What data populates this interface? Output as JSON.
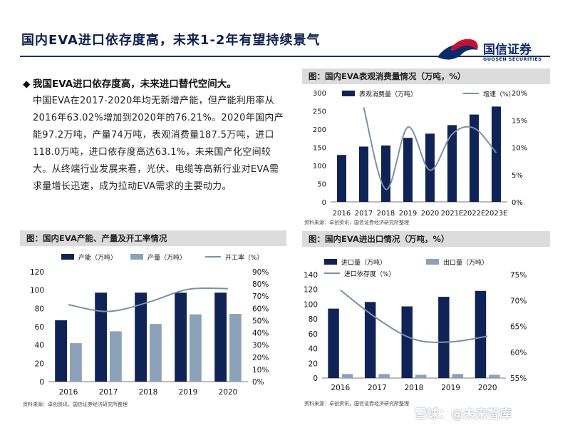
{
  "header": {
    "title": "国内EVA进口依存度高，未来1-2年有望持续景气",
    "logo": {
      "name_cn": "国信证券",
      "name_en": "GUOSEN SECURITIES"
    }
  },
  "bullet": {
    "marker": "◆",
    "heading": "我国EVA进口依存度高，未来进口替代空间大。",
    "body": "中国EVA在2017-2020年均无新增产能，但产能利用率从2016年63.02%增加到2020年的76.21%。2020年国内产能97.2万吨，产量74万吨，表观消费量187.5万吨，进口118.0万吨，进口依存度高达63.1%，未来国产化空间较大。从终端行业发展来看，光伏、电缆等高新行业对EVA需求量增长迅速，成为拉动EVA需求的主要动力。"
  },
  "chart_titles": {
    "consumption": "图：国内EVA表观消费量情况（万吨，%）",
    "capacity": "图：国内EVA产能、产量及开工率情况",
    "trade": "图：国内EVA进出口情况（万吨，%）"
  },
  "sources": {
    "consumption": "资料来源：卓创资讯，国信证券经济研究所整理",
    "capacity": "资料来源：卓创资讯，国信证券经济研究所整理",
    "trade": "资料来源：卓创资讯，国信证券经济研究所整理"
  },
  "watermark": "雪球：@未来智库",
  "colors": {
    "navy": "#0f2356",
    "gray_bar": "#8ca2b8",
    "line": "#7b91a6",
    "brand_red": "#c8102e",
    "brand_blue": "#0c2a6b"
  },
  "chart_data": [
    {
      "id": "consumption",
      "type": "bar",
      "categories": [
        "2016",
        "2017",
        "2018",
        "2019",
        "2020",
        "2021E",
        "2022E",
        "2023E"
      ],
      "series": [
        {
          "name": "表观消费量（万吨）",
          "type": "bar",
          "axis": "left",
          "values": [
            129,
            152,
            155,
            176,
            187.5,
            211,
            240,
            262
          ]
        },
        {
          "name": "增速（%）",
          "type": "line",
          "axis": "right",
          "values": [
            null,
            17.3,
            2.3,
            13.7,
            5.8,
            12.4,
            13.5,
            9.0
          ]
        }
      ],
      "left_axis": {
        "min": 0,
        "max": 300,
        "ticks": [
          0,
          50,
          100,
          150,
          200,
          250,
          300
        ]
      },
      "right_axis": {
        "min": 0,
        "max": 20,
        "ticks": [
          "0%",
          "5%",
          "10%",
          "15%",
          "20%"
        ]
      },
      "grid": false,
      "legend": "top"
    },
    {
      "id": "capacity",
      "type": "bar",
      "categories": [
        "2016",
        "2017",
        "2018",
        "2019",
        "2020"
      ],
      "series": [
        {
          "name": "产能（万吨）",
          "type": "bar",
          "axis": "left",
          "values": [
            67,
            97.2,
            97.2,
            97.2,
            97.2
          ]
        },
        {
          "name": "产量（万吨）",
          "type": "bar",
          "axis": "left",
          "values": [
            42,
            55,
            63,
            73.5,
            74
          ]
        },
        {
          "name": "开工率（%）",
          "type": "line",
          "axis": "right",
          "values": [
            63.02,
            57.5,
            65.0,
            75.6,
            76.21
          ]
        }
      ],
      "left_axis": {
        "min": 0,
        "max": 120,
        "ticks": [
          0,
          20,
          40,
          60,
          80,
          100,
          120
        ]
      },
      "right_axis": {
        "min": 0,
        "max": 90,
        "ticks": [
          "0%",
          "10%",
          "20%",
          "30%",
          "40%",
          "50%",
          "60%",
          "70%",
          "80%",
          "90%"
        ]
      },
      "grid": false,
      "legend": "top"
    },
    {
      "id": "trade",
      "type": "bar",
      "categories": [
        "2016",
        "2017",
        "2018",
        "2019",
        "2020"
      ],
      "series": [
        {
          "name": "进口量（万吨）",
          "type": "bar",
          "axis": "left",
          "values": [
            94,
            103,
            97,
            110,
            118
          ]
        },
        {
          "name": "出口量（万吨）",
          "type": "bar",
          "axis": "left",
          "values": [
            5.5,
            5.5,
            4.5,
            5.5,
            4.5
          ]
        },
        {
          "name": "进口依存度（%）",
          "type": "line",
          "axis": "right",
          "values": [
            72.0,
            66.5,
            62.5,
            62.0,
            63.1
          ]
        }
      ],
      "left_axis": {
        "min": 0,
        "max": 140,
        "ticks": [
          0,
          20,
          40,
          60,
          80,
          100,
          120,
          140
        ]
      },
      "right_axis": {
        "min": 55,
        "max": 75,
        "ticks": [
          "55%",
          "60%",
          "65%",
          "70%",
          "75%"
        ]
      },
      "grid": false,
      "legend": "top"
    }
  ]
}
